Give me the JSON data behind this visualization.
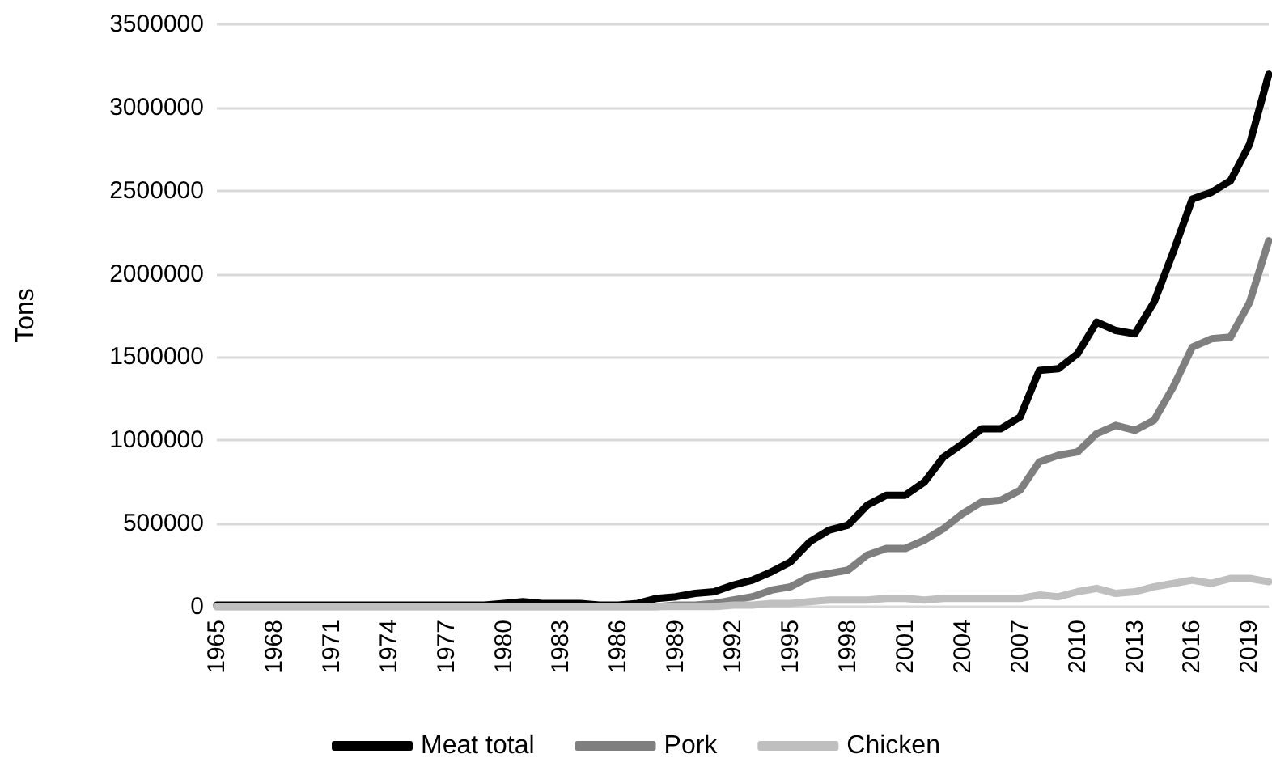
{
  "chart_data": {
    "type": "line",
    "ylabel": "Tons",
    "categories": [
      "1965",
      null,
      null,
      "1968",
      null,
      null,
      "1971",
      null,
      null,
      "1974",
      null,
      null,
      "1977",
      null,
      null,
      "1980",
      null,
      null,
      "1983",
      null,
      null,
      "1986",
      null,
      null,
      "1989",
      null,
      null,
      "1992",
      null,
      null,
      "1995",
      null,
      null,
      "1998",
      null,
      null,
      "2001",
      null,
      null,
      "2004",
      null,
      null,
      "2007",
      null,
      null,
      "2010",
      null,
      null,
      "2013",
      null,
      null,
      "2016",
      null,
      null,
      "2019",
      null
    ],
    "series": [
      {
        "name": "Meat total",
        "color": "#000000",
        "values": [
          10000,
          10000,
          10000,
          10000,
          10000,
          10000,
          10000,
          10000,
          10000,
          10000,
          10000,
          10000,
          10000,
          10000,
          10000,
          20000,
          30000,
          20000,
          20000,
          20000,
          10000,
          10000,
          20000,
          50000,
          60000,
          80000,
          90000,
          130000,
          160000,
          210000,
          270000,
          390000,
          460000,
          490000,
          610000,
          670000,
          670000,
          750000,
          900000,
          980000,
          1070000,
          1070000,
          1140000,
          1420000,
          1430000,
          1520000,
          1710000,
          1660000,
          1640000,
          1830000,
          2130000,
          2450000,
          2490000,
          2560000,
          2780000,
          3200000
        ]
      },
      {
        "name": "Pork",
        "color": "#7f7f7f",
        "values": [
          0,
          0,
          0,
          0,
          0,
          0,
          0,
          0,
          0,
          0,
          0,
          0,
          0,
          0,
          0,
          0,
          0,
          0,
          0,
          0,
          0,
          0,
          0,
          0,
          10000,
          10000,
          20000,
          40000,
          60000,
          100000,
          120000,
          180000,
          200000,
          220000,
          310000,
          350000,
          350000,
          400000,
          470000,
          560000,
          630000,
          640000,
          700000,
          870000,
          910000,
          930000,
          1040000,
          1090000,
          1060000,
          1120000,
          1320000,
          1560000,
          1610000,
          1620000,
          1830000,
          2200000
        ]
      },
      {
        "name": "Chicken",
        "color": "#bfbfbf",
        "values": [
          0,
          0,
          0,
          0,
          0,
          0,
          0,
          0,
          0,
          0,
          0,
          0,
          0,
          0,
          0,
          0,
          0,
          0,
          0,
          0,
          0,
          0,
          0,
          0,
          0,
          0,
          0,
          10000,
          10000,
          20000,
          20000,
          30000,
          40000,
          40000,
          40000,
          50000,
          50000,
          40000,
          50000,
          50000,
          50000,
          50000,
          50000,
          70000,
          60000,
          90000,
          110000,
          80000,
          90000,
          120000,
          140000,
          160000,
          140000,
          170000,
          170000,
          150000
        ]
      }
    ],
    "ylim": [
      0,
      3500000
    ],
    "yticks": [
      0,
      500000,
      1000000,
      1500000,
      2000000,
      2500000,
      3000000,
      3500000
    ],
    "grid": "y",
    "legend": "bottom",
    "marker": "none",
    "line_style": "solid"
  }
}
